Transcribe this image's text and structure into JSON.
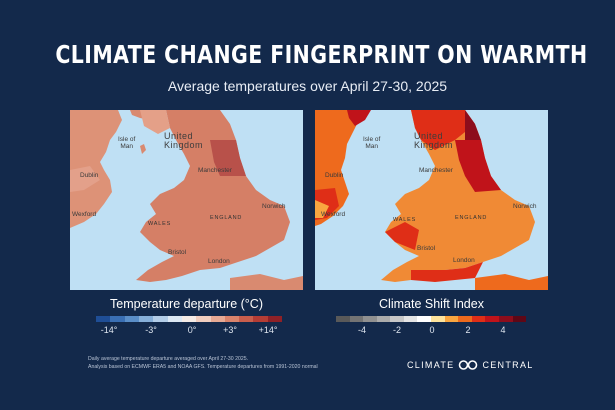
{
  "title": "CLIMATE CHANGE FINGERPRINT ON WARMTH",
  "subtitle": "Average temperatures over April 27-30, 2025",
  "maps": {
    "places": {
      "isle_of_man": "Isle of\nMan",
      "united_kingdom": "United\nKingdom",
      "dublin": "Dublin",
      "manchester": "Manchester",
      "wexford": "Wexford",
      "wales": "WALES",
      "england": "ENGLAND",
      "norwich": "Norwich",
      "bristol": "Bristol",
      "london": "London"
    }
  },
  "legend_left": {
    "title": "Temperature departure (°C)",
    "ticks": [
      "-14°",
      "-3°",
      "0°",
      "+3°",
      "+14°"
    ],
    "colors": [
      "#1f4e96",
      "#3a6fb4",
      "#5a8ec8",
      "#86afd9",
      "#b3cde8",
      "#dce8f4",
      "#f4ebe6",
      "#f0cdbf",
      "#e6a994",
      "#d9836c",
      "#c95e4c",
      "#b53d35",
      "#8f2127"
    ]
  },
  "legend_right": {
    "title": "Climate Shift Index",
    "ticks": [
      "-4",
      "-2",
      "0",
      "2",
      "4"
    ],
    "colors": [
      "#595959",
      "#747474",
      "#909090",
      "#ababab",
      "#c8c8c8",
      "#e4e4e4",
      "#ffffff",
      "#fde39c",
      "#f9a640",
      "#ee6a1d",
      "#df2e17",
      "#c0131a",
      "#8d0d1c",
      "#5e0716"
    ]
  },
  "footnote": {
    "line1": "Daily average temperature departure averaged over April 27-30 2025.",
    "line2": "Analysis based on ECMWF ERA5 and NOAA GFS. Temperature departures from 1991-2020 normal"
  },
  "brand": {
    "left": "CLIMATE",
    "right": "CENTRAL"
  }
}
